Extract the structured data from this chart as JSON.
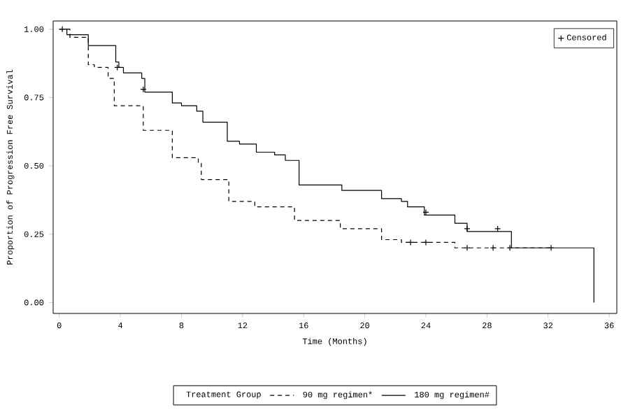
{
  "chart_data": {
    "type": "step",
    "xlabel": "Time (Months)",
    "ylabel": "Proportion of Progression Free Survival",
    "legend": "bottom",
    "legend_title": "Treatment Group",
    "xlim": [
      -0.4,
      36.5
    ],
    "ylim": [
      -0.04,
      1.03
    ],
    "xticks": [
      0,
      4,
      8,
      12,
      16,
      20,
      24,
      28,
      32,
      36
    ],
    "yticks": [
      {
        "value": 0,
        "label": "0.00"
      },
      {
        "value": 0.25,
        "label": "0.25"
      },
      {
        "value": 0.5,
        "label": "0.50"
      },
      {
        "value": 0.75,
        "label": "0.75"
      },
      {
        "value": 1,
        "label": "1.00"
      }
    ],
    "series": [
      {
        "name": "90 mg regimen*",
        "color": "#000000",
        "line_style": "dashed",
        "x": [
          0,
          0.7,
          1.9,
          2.3,
          3.2,
          3.6,
          5.5,
          7.4,
          9.1,
          9.3,
          11.1,
          12.8,
          15.4,
          18.4,
          21.1,
          22.4,
          25.9,
          32.2
        ],
        "values": [
          1.0,
          0.97,
          0.87,
          0.86,
          0.82,
          0.72,
          0.63,
          0.53,
          0.51,
          0.45,
          0.37,
          0.35,
          0.3,
          0.27,
          0.23,
          0.22,
          0.2,
          0.2
        ]
      },
      {
        "name": "180 mg regimen#",
        "color": "#000000",
        "line_style": "solid",
        "x": [
          0,
          0.5,
          1.9,
          3.7,
          3.9,
          4.2,
          5.4,
          5.6,
          7.4,
          8.0,
          9.0,
          9.4,
          11.0,
          11.8,
          12.9,
          14.1,
          14.8,
          15.7,
          18.5,
          21.1,
          22.4,
          22.8,
          23.9,
          25.9,
          26.7,
          29.6,
          35.0
        ],
        "values": [
          1.0,
          0.98,
          0.94,
          0.88,
          0.86,
          0.84,
          0.82,
          0.77,
          0.73,
          0.72,
          0.7,
          0.66,
          0.59,
          0.58,
          0.55,
          0.54,
          0.52,
          0.43,
          0.41,
          0.38,
          0.37,
          0.35,
          0.32,
          0.29,
          0.26,
          0.2,
          0.0
        ]
      },
      {
        "name": "Censored",
        "type": "scatter",
        "marker": "cross",
        "color": "#000000",
        "x": [
          0.2,
          3.8,
          5.5,
          23.0,
          24.0,
          24.0,
          26.7,
          26.7,
          28.7,
          28.4,
          29.5,
          32.2
        ],
        "values": [
          1.0,
          0.86,
          0.78,
          0.22,
          0.33,
          0.22,
          0.27,
          0.2,
          0.27,
          0.2,
          0.2,
          0.2
        ]
      }
    ]
  }
}
